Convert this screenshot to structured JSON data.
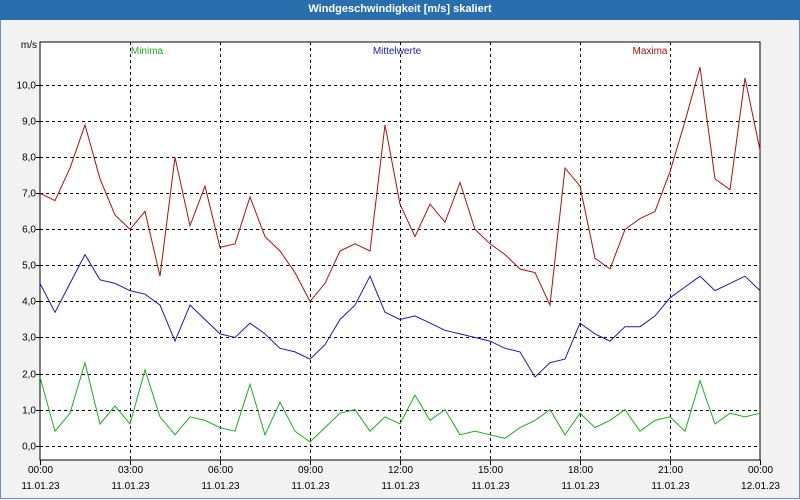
{
  "window": {
    "title": "Windgeschwindigkeit [m/s] skaliert"
  },
  "chart_data": {
    "type": "line",
    "title": "Windgeschwindigkeit [m/s] skaliert",
    "ylabel": "m/s",
    "ylim": [
      -0.4,
      11.2
    ],
    "yticks": [
      "0,0",
      "1,0",
      "2,0",
      "3,0",
      "4,0",
      "5,0",
      "6,0",
      "7,0",
      "8,0",
      "9,0",
      "10,0"
    ],
    "xticks": [
      {
        "time": "00:00",
        "date": "11.01.23"
      },
      {
        "time": "03:00",
        "date": "11.01.23"
      },
      {
        "time": "06:00",
        "date": "11.01.23"
      },
      {
        "time": "09:00",
        "date": "11.01.23"
      },
      {
        "time": "12:00",
        "date": "11.01.23"
      },
      {
        "time": "15:00",
        "date": "11.01.23"
      },
      {
        "time": "18:00",
        "date": "11.01.23"
      },
      {
        "time": "21:00",
        "date": "11.01.23"
      },
      {
        "time": "00:00",
        "date": "12.01.23"
      }
    ],
    "grid": true,
    "legend_position": "top",
    "series": [
      {
        "name": "Minima",
        "color": "#22aa22",
        "x_hours": [
          0,
          0.5,
          1,
          1.5,
          2,
          2.5,
          3,
          3.5,
          4,
          4.5,
          5,
          5.5,
          6,
          6.5,
          7,
          7.5,
          8,
          8.5,
          9,
          9.5,
          10,
          10.5,
          11,
          11.5,
          12,
          12.5,
          13,
          13.5,
          14,
          14.5,
          15,
          15.5,
          16,
          16.5,
          17,
          17.5,
          18,
          18.5,
          19,
          19.5,
          20,
          20.5,
          21,
          21.5,
          22,
          22.5,
          23,
          23.5,
          24
        ],
        "values": [
          1.9,
          0.4,
          0.9,
          2.3,
          0.6,
          1.1,
          0.6,
          2.1,
          0.8,
          0.3,
          0.8,
          0.7,
          0.5,
          0.4,
          1.7,
          0.3,
          1.2,
          0.4,
          0.1,
          0.5,
          0.9,
          1.0,
          0.4,
          0.8,
          0.6,
          1.4,
          0.7,
          1.0,
          0.3,
          0.4,
          0.3,
          0.2,
          0.5,
          0.7,
          1.0,
          0.3,
          0.9,
          0.5,
          0.7,
          1.0,
          0.4,
          0.7,
          0.8,
          0.4,
          1.8,
          0.6,
          0.9,
          0.8,
          0.9
        ]
      },
      {
        "name": "Mittelwerte",
        "color": "#1a1aaa",
        "x_hours": [
          0,
          0.5,
          1,
          1.5,
          2,
          2.5,
          3,
          3.5,
          4,
          4.5,
          5,
          5.5,
          6,
          6.5,
          7,
          7.5,
          8,
          8.5,
          9,
          9.5,
          10,
          10.5,
          11,
          11.5,
          12,
          12.5,
          13,
          13.5,
          14,
          14.5,
          15,
          15.5,
          16,
          16.5,
          17,
          17.5,
          18,
          18.5,
          19,
          19.5,
          20,
          20.5,
          21,
          21.5,
          22,
          22.5,
          23,
          23.5,
          24
        ],
        "values": [
          4.5,
          3.7,
          4.5,
          5.3,
          4.6,
          4.5,
          4.3,
          4.2,
          3.9,
          2.9,
          3.9,
          3.5,
          3.1,
          3.0,
          3.4,
          3.1,
          2.7,
          2.6,
          2.4,
          2.8,
          3.5,
          3.9,
          4.7,
          3.7,
          3.5,
          3.6,
          3.4,
          3.2,
          3.1,
          3.0,
          2.9,
          2.7,
          2.6,
          1.9,
          2.3,
          2.4,
          3.4,
          3.1,
          2.9,
          3.3,
          3.3,
          3.6,
          4.1,
          4.4,
          4.7,
          4.3,
          4.5,
          4.7,
          4.3
        ]
      },
      {
        "name": "Maxima",
        "color": "#aa1111",
        "x_hours": [
          0,
          0.5,
          1,
          1.5,
          2,
          2.5,
          3,
          3.5,
          4,
          4.5,
          5,
          5.5,
          6,
          6.5,
          7,
          7.5,
          8,
          8.5,
          9,
          9.5,
          10,
          10.5,
          11,
          11.5,
          12,
          12.5,
          13,
          13.5,
          14,
          14.5,
          15,
          15.5,
          16,
          16.5,
          17,
          17.5,
          18,
          18.5,
          19,
          19.5,
          20,
          20.5,
          21,
          21.5,
          22,
          22.5,
          23,
          23.5,
          24
        ],
        "values": [
          7.0,
          6.8,
          7.7,
          8.9,
          7.4,
          6.4,
          6.0,
          6.5,
          4.7,
          8.0,
          6.1,
          7.2,
          5.5,
          5.6,
          6.9,
          5.8,
          5.4,
          4.8,
          4.0,
          4.5,
          5.4,
          5.6,
          5.4,
          8.9,
          6.7,
          5.8,
          6.7,
          6.2,
          7.3,
          6.0,
          5.6,
          5.3,
          4.9,
          4.8,
          3.9,
          7.7,
          7.2,
          5.2,
          4.9,
          6.0,
          6.3,
          6.5,
          7.6,
          9.0,
          10.5,
          7.4,
          7.1,
          10.2,
          8.2
        ]
      }
    ]
  }
}
